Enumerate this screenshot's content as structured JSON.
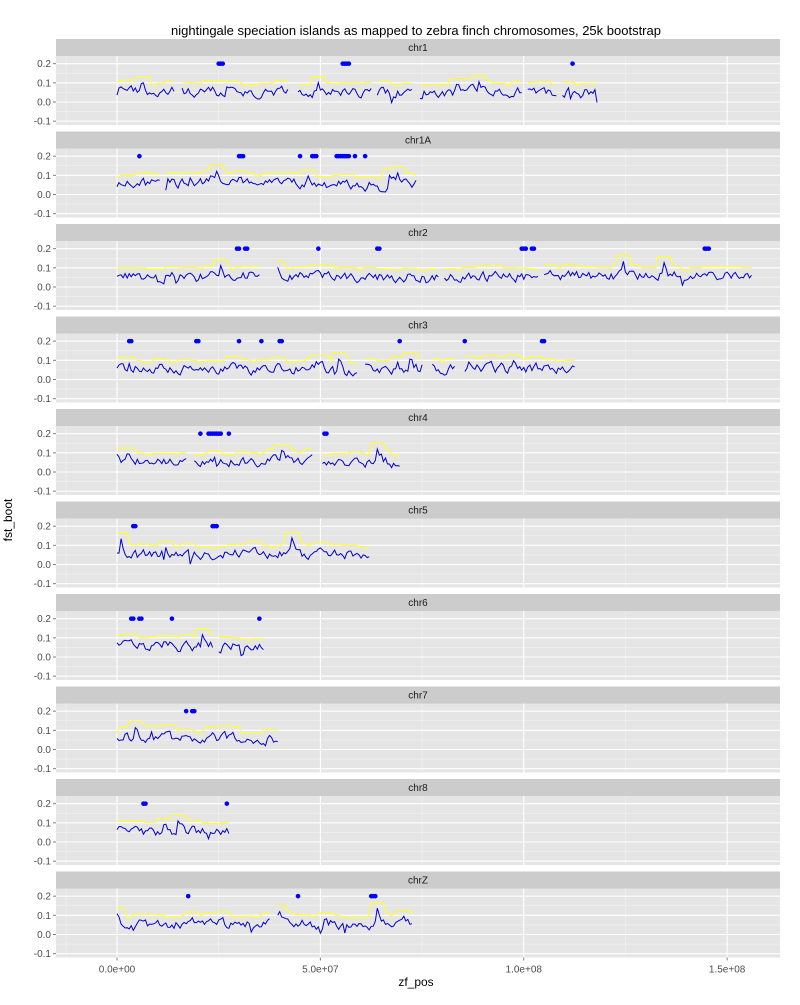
{
  "chart_data": {
    "type": "line",
    "title": "nightingale speciation islands as mapped to zebra finch chromosomes, 25k bootstrap",
    "xlabel": "zf_pos",
    "ylabel": "fst_boot",
    "xlim": [
      -15000000,
      163000000
    ],
    "ylim": [
      -0.12,
      0.24
    ],
    "x_ticks": [
      0,
      50000000,
      100000000,
      150000000
    ],
    "x_tick_labels": [
      "0.0e+00",
      "5.0e+07",
      "1.0e+08",
      "1.5e+08"
    ],
    "y_ticks": [
      -0.1,
      0.0,
      0.1,
      0.2
    ],
    "y_tick_labels": [
      "-0.1",
      "0.0",
      "0.1",
      "0.2"
    ],
    "grid": true,
    "colors": {
      "fst_line": "#0000cc",
      "threshold_line": "#ffff33",
      "island_points": "#0000ff",
      "panel_bg": "#e5e5e5",
      "strip_bg": "#cccccc",
      "grid_major": "#ffffff",
      "grid_minor": "#f2f2f2"
    },
    "facets": [
      {
        "label": "chr1",
        "length": 118000000,
        "gaps": [
          [
            14500000,
            15500000
          ],
          [
            42500000,
            44000000
          ],
          [
            63000000,
            63500000
          ],
          [
            73000000,
            74000000
          ],
          [
            100000000,
            100500000
          ],
          [
            108500000,
            109000000
          ]
        ],
        "islands": [
          25000000,
          25500000,
          26000000,
          55500000,
          56000000,
          56500000,
          57000000,
          112000000
        ]
      },
      {
        "label": "chr1A",
        "length": 73500000,
        "gaps": [
          [
            11000000,
            11500000
          ]
        ],
        "islands": [
          5500000,
          30000000,
          30500000,
          31000000,
          45000000,
          48000000,
          48500000,
          49000000,
          54000000,
          54500000,
          55000000,
          55500000,
          56000000,
          56500000,
          57000000,
          58500000,
          61000000
        ]
      },
      {
        "label": "chr2",
        "length": 156000000,
        "gaps": [
          [
            35500000,
            39000000
          ],
          [
            79500000,
            80000000
          ],
          [
            104000000,
            104500000
          ]
        ],
        "islands": [
          29500000,
          30000000,
          31500000,
          32000000,
          49500000,
          64000000,
          64500000,
          99500000,
          100000000,
          100500000,
          102000000,
          102500000,
          144500000,
          145000000,
          145500000
        ]
      },
      {
        "label": "chr3",
        "length": 112500000,
        "gaps": [
          [
            59500000,
            60500000
          ],
          [
            75500000,
            77000000
          ],
          [
            83500000,
            85000000
          ]
        ],
        "islands": [
          3000000,
          3500000,
          19500000,
          20000000,
          30000000,
          35500000,
          40000000,
          40500000,
          69500000,
          85500000,
          104500000,
          105000000
        ]
      },
      {
        "label": "chr4",
        "length": 69500000,
        "gaps": [
          [
            17500000,
            18500000
          ],
          [
            48500000,
            50000000
          ]
        ],
        "islands": [
          20500000,
          22500000,
          23000000,
          23500000,
          24000000,
          24500000,
          25000000,
          25500000,
          27500000,
          51000000,
          51500000
        ]
      },
      {
        "label": "chr5",
        "length": 62000000,
        "gaps": [],
        "islands": [
          4000000,
          4500000,
          23500000,
          24000000,
          24500000
        ]
      },
      {
        "label": "chr6",
        "length": 36000000,
        "gaps": [
          [
            24000000,
            24500000
          ]
        ],
        "islands": [
          3500000,
          4000000,
          5500000,
          6000000,
          13500000,
          35000000
        ]
      },
      {
        "label": "chr7",
        "length": 39500000,
        "gaps": [],
        "islands": [
          17000000,
          18500000,
          19000000
        ]
      },
      {
        "label": "chr8",
        "length": 27500000,
        "gaps": [],
        "islands": [
          6500000,
          7000000,
          27000000
        ]
      },
      {
        "label": "chrZ",
        "length": 72500000,
        "gaps": [
          [
            38000000,
            39000000
          ]
        ],
        "islands": [
          17500000,
          44500000,
          62500000,
          63000000,
          63500000
        ]
      }
    ]
  }
}
